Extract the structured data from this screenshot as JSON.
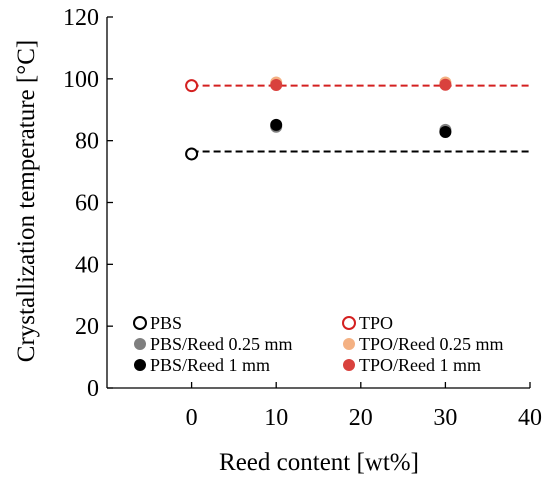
{
  "chart_data": {
    "type": "scatter",
    "xlabel": "Reed content [wt%]",
    "ylabel": "Crystallization temperature [°C]",
    "xlim": [
      -10,
      40
    ],
    "ylim": [
      0,
      120
    ],
    "x_ticks": [
      0,
      10,
      20,
      30,
      40
    ],
    "y_ticks": [
      0,
      20,
      40,
      60,
      80,
      100,
      120
    ],
    "grid": false,
    "legend_position": "bottom, inside plot, two columns",
    "series": [
      {
        "name": "PBS",
        "marker": "open-circle",
        "color": "#000000",
        "points": [
          {
            "x": 0,
            "y": 75.7
          }
        ]
      },
      {
        "name": "TPO",
        "marker": "open-circle",
        "color": "#d42020",
        "points": [
          {
            "x": 0,
            "y": 97.8
          }
        ]
      },
      {
        "name": "PBS/Reed 0.25 mm",
        "marker": "filled-circle",
        "color": "#7f7f7f",
        "points": [
          {
            "x": 10,
            "y": 84.5
          },
          {
            "x": 30,
            "y": 83.5
          }
        ]
      },
      {
        "name": "TPO/Reed 0.25 mm",
        "marker": "filled-circle",
        "color": "#f4b183",
        "points": [
          {
            "x": 10,
            "y": 98.8
          },
          {
            "x": 30,
            "y": 98.8
          }
        ]
      },
      {
        "name": "PBS/Reed 1 mm",
        "marker": "filled-circle",
        "color": "#000000",
        "points": [
          {
            "x": 10,
            "y": 85.1
          },
          {
            "x": 30,
            "y": 82.8
          }
        ]
      },
      {
        "name": "TPO/Reed 1 mm",
        "marker": "filled-circle",
        "color": "#d9413d",
        "points": [
          {
            "x": 10,
            "y": 98.0
          },
          {
            "x": 30,
            "y": 98.1
          }
        ]
      }
    ],
    "reference_lines": [
      {
        "style": "dashed",
        "color": "#000000",
        "y": 76.5,
        "x_from": 0,
        "x_to": 40
      },
      {
        "style": "dashed",
        "color": "#d42020",
        "y": 97.8,
        "x_from": 0,
        "x_to": 40
      }
    ]
  }
}
